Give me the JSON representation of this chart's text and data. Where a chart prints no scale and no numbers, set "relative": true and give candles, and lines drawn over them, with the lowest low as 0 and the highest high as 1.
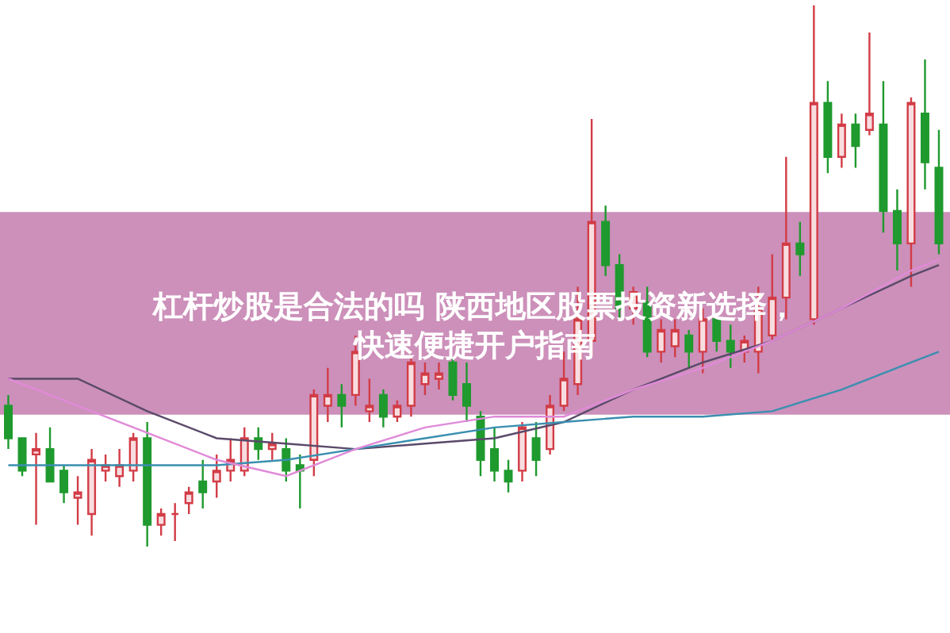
{
  "chart_data": {
    "type": "candlestick",
    "title": "杠杆炒股是合法的吗 陕西地区股票投资新选择，快速便捷开户指南",
    "relative": true,
    "categories": [
      null,
      null,
      null,
      null,
      null,
      null,
      null,
      null,
      null,
      null,
      null,
      null,
      null,
      null,
      null,
      null,
      null,
      null,
      null,
      null,
      null,
      null,
      null,
      null,
      null,
      null,
      null,
      null,
      null,
      null,
      null,
      null,
      null,
      null,
      null,
      null,
      null,
      null,
      null,
      null,
      null,
      null,
      null,
      null,
      null,
      null,
      null,
      null,
      null,
      null,
      null,
      null,
      null,
      null,
      null,
      null,
      null,
      null,
      null,
      null,
      null,
      null,
      null,
      null,
      null,
      null,
      null,
      null
    ],
    "colors": [
      "#1f9a2e",
      "#1f9a2e",
      "#d23c46",
      "#1f9a2e",
      "#1f9a2e",
      "#d23c46",
      "#d23c46",
      "#d23c46",
      "#d23c46",
      "#d23c46",
      "#1f9a2e",
      "#d23c46",
      "#d23c46",
      "#d23c46",
      "#1f9a2e",
      "#d23c46",
      "#d23c46",
      "#d23c46",
      "#1f9a2e",
      "#d23c46",
      "#1f9a2e",
      "#1f9a2e",
      "#d23c46",
      "#d23c46",
      "#1f9a2e",
      "#d23c46",
      "#d23c46",
      "#1f9a2e",
      "#d23c46",
      "#d23c46",
      "#d23c46",
      "#d23c46",
      "#1f9a2e",
      "#1f9a2e",
      "#1f9a2e",
      "#1f9a2e",
      "#1f9a2e",
      "#d23c46",
      "#1f9a2e",
      "#d23c46",
      "#d23c46",
      "#d23c46",
      "#d23c46",
      "#1f9a2e",
      "#1f9a2e",
      "#d23c46",
      "#1f9a2e",
      "#d23c46",
      "#d23c46",
      "#1f9a2e",
      "#d23c46",
      "#1f9a2e",
      "#1f9a2e",
      "#d23c46",
      "#d23c46",
      "#d23c46",
      "#d23c46",
      "#1f9a2e",
      "#d23c46",
      "#1f9a2e",
      "#d23c46",
      "#1f9a2e",
      "#d23c46",
      "#1f9a2e",
      "#1f9a2e",
      "#d23c46",
      "#1f9a2e",
      "#1f9a2e"
    ],
    "ohlc": [
      [
        0.26,
        0.28,
        0.18,
        0.2
      ],
      [
        0.2,
        0.2,
        0.13,
        0.14
      ],
      [
        0.17,
        0.21,
        0.04,
        0.18
      ],
      [
        0.18,
        0.22,
        0.12,
        0.12
      ],
      [
        0.14,
        0.15,
        0.08,
        0.1
      ],
      [
        0.09,
        0.13,
        0.04,
        0.1
      ],
      [
        0.06,
        0.18,
        0.02,
        0.16
      ],
      [
        0.14,
        0.17,
        0.12,
        0.15
      ],
      [
        0.13,
        0.18,
        0.11,
        0.15
      ],
      [
        0.14,
        0.21,
        0.12,
        0.2
      ],
      [
        0.2,
        0.23,
        0.0,
        0.04
      ],
      [
        0.04,
        0.07,
        0.02,
        0.06
      ],
      [
        0.06,
        0.08,
        0.01,
        0.06
      ],
      [
        0.08,
        0.11,
        0.06,
        0.1
      ],
      [
        0.12,
        0.16,
        0.07,
        0.1
      ],
      [
        0.12,
        0.17,
        0.09,
        0.14
      ],
      [
        0.14,
        0.2,
        0.12,
        0.16
      ],
      [
        0.14,
        0.22,
        0.13,
        0.2
      ],
      [
        0.2,
        0.22,
        0.16,
        0.18
      ],
      [
        0.18,
        0.21,
        0.16,
        0.19
      ],
      [
        0.18,
        0.2,
        0.12,
        0.14
      ],
      [
        0.15,
        0.17,
        0.07,
        0.14
      ],
      [
        0.16,
        0.29,
        0.13,
        0.28
      ],
      [
        0.26,
        0.33,
        0.23,
        0.28
      ],
      [
        0.28,
        0.3,
        0.22,
        0.26
      ],
      [
        0.28,
        0.39,
        0.26,
        0.36
      ],
      [
        0.25,
        0.31,
        0.23,
        0.26
      ],
      [
        0.28,
        0.29,
        0.22,
        0.24
      ],
      [
        0.24,
        0.27,
        0.23,
        0.26
      ],
      [
        0.26,
        0.35,
        0.24,
        0.34
      ],
      [
        0.3,
        0.34,
        0.28,
        0.32
      ],
      [
        0.31,
        0.34,
        0.29,
        0.32
      ],
      [
        0.34,
        0.35,
        0.27,
        0.28
      ],
      [
        0.3,
        0.34,
        0.23,
        0.26
      ],
      [
        0.24,
        0.25,
        0.13,
        0.16
      ],
      [
        0.18,
        0.22,
        0.12,
        0.14
      ],
      [
        0.14,
        0.16,
        0.1,
        0.12
      ],
      [
        0.14,
        0.23,
        0.12,
        0.22
      ],
      [
        0.2,
        0.23,
        0.13,
        0.16
      ],
      [
        0.18,
        0.28,
        0.17,
        0.26
      ],
      [
        0.26,
        0.36,
        0.25,
        0.31
      ],
      [
        0.3,
        0.48,
        0.28,
        0.42
      ],
      [
        0.38,
        0.79,
        0.35,
        0.6
      ],
      [
        0.6,
        0.63,
        0.5,
        0.52
      ],
      [
        0.52,
        0.54,
        0.42,
        0.44
      ],
      [
        0.44,
        0.48,
        0.41,
        0.47
      ],
      [
        0.45,
        0.48,
        0.35,
        0.36
      ],
      [
        0.36,
        0.42,
        0.34,
        0.4
      ],
      [
        0.37,
        0.42,
        0.35,
        0.4
      ],
      [
        0.39,
        0.4,
        0.33,
        0.36
      ],
      [
        0.36,
        0.44,
        0.32,
        0.42
      ],
      [
        0.42,
        0.43,
        0.36,
        0.38
      ],
      [
        0.38,
        0.41,
        0.33,
        0.36
      ],
      [
        0.36,
        0.39,
        0.34,
        0.38
      ],
      [
        0.36,
        0.48,
        0.32,
        0.44
      ],
      [
        0.39,
        0.54,
        0.38,
        0.46
      ],
      [
        0.46,
        0.72,
        0.42,
        0.56
      ],
      [
        0.56,
        0.6,
        0.5,
        0.54
      ],
      [
        0.42,
        1.0,
        0.41,
        0.82
      ],
      [
        0.82,
        0.86,
        0.69,
        0.72
      ],
      [
        0.72,
        0.8,
        0.7,
        0.78
      ],
      [
        0.78,
        0.8,
        0.7,
        0.74
      ],
      [
        0.77,
        0.95,
        0.76,
        0.8
      ],
      [
        0.78,
        0.86,
        0.58,
        0.62
      ],
      [
        0.62,
        0.66,
        0.51,
        0.56
      ],
      [
        0.56,
        0.83,
        0.48,
        0.82
      ],
      [
        0.8,
        0.9,
        0.66,
        0.71
      ],
      [
        0.7,
        0.77,
        0.54,
        0.56
      ]
    ],
    "series": [
      {
        "type": "line",
        "color": "#5a4a6a",
        "values": [
          0.31,
          null,
          null,
          null,
          null,
          0.31,
          null,
          null,
          null,
          null,
          0.25,
          null,
          null,
          null,
          null,
          0.2,
          null,
          null,
          null,
          null,
          0.19,
          null,
          null,
          null,
          null,
          0.18,
          null,
          null,
          null,
          null,
          0.19,
          null,
          null,
          null,
          null,
          0.2,
          null,
          null,
          null,
          null,
          0.23,
          null,
          null,
          null,
          null,
          0.29,
          null,
          null,
          null,
          null,
          0.34,
          null,
          null,
          null,
          null,
          0.38,
          null,
          null,
          null,
          null,
          0.44,
          null,
          null,
          null,
          null,
          0.5,
          null,
          0.52
        ]
      },
      {
        "type": "line",
        "color": "#3a8fb0",
        "values": [
          0.15,
          null,
          null,
          null,
          null,
          0.15,
          null,
          null,
          null,
          null,
          0.15,
          null,
          null,
          null,
          null,
          0.15,
          null,
          null,
          null,
          null,
          0.16,
          null,
          null,
          null,
          null,
          0.18,
          null,
          null,
          null,
          null,
          0.2,
          null,
          null,
          null,
          null,
          0.22,
          null,
          null,
          null,
          null,
          0.23,
          null,
          null,
          null,
          null,
          0.24,
          null,
          null,
          null,
          null,
          0.24,
          null,
          null,
          null,
          null,
          0.25,
          null,
          null,
          null,
          null,
          0.29,
          null,
          null,
          null,
          null,
          0.34,
          null,
          0.36
        ]
      },
      {
        "type": "line",
        "color": "#e08ad8",
        "values": [
          0.31,
          null,
          null,
          null,
          null,
          0.26,
          null,
          null,
          null,
          null,
          0.21,
          null,
          null,
          null,
          null,
          0.16,
          null,
          null,
          null,
          null,
          0.13,
          null,
          null,
          null,
          null,
          0.18,
          null,
          null,
          null,
          null,
          0.22,
          null,
          null,
          null,
          null,
          0.24,
          null,
          null,
          null,
          null,
          0.24,
          null,
          null,
          null,
          null,
          0.29,
          null,
          null,
          null,
          null,
          0.33,
          null,
          null,
          null,
          null,
          0.38,
          null,
          null,
          null,
          null,
          0.44,
          null,
          null,
          null,
          null,
          0.51,
          null,
          0.53
        ]
      }
    ]
  }
}
